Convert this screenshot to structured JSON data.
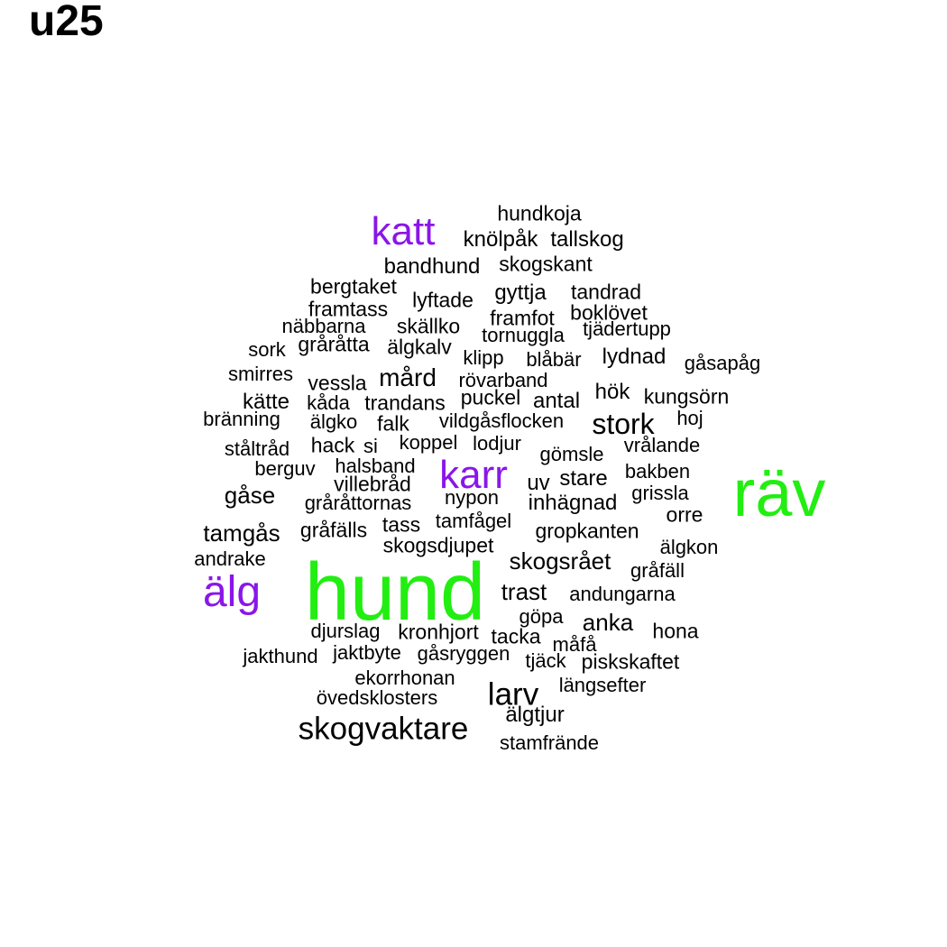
{
  "title": "u25",
  "colors": {
    "green": "#22ee11",
    "purple": "#8a16e8",
    "black": "#000000"
  },
  "words": [
    {
      "text": "hundkoja",
      "color": "black"
    },
    {
      "text": "katt",
      "color": "purple"
    },
    {
      "text": "knölpåk",
      "color": "black"
    },
    {
      "text": "tallskog",
      "color": "black"
    },
    {
      "text": "bandhund",
      "color": "black"
    },
    {
      "text": "skogskant",
      "color": "black"
    },
    {
      "text": "bergtaket",
      "color": "black"
    },
    {
      "text": "lyftade",
      "color": "black"
    },
    {
      "text": "gyttja",
      "color": "black"
    },
    {
      "text": "tandrad",
      "color": "black"
    },
    {
      "text": "framtass",
      "color": "black"
    },
    {
      "text": "framfot",
      "color": "black"
    },
    {
      "text": "boklövet",
      "color": "black"
    },
    {
      "text": "näbbarna",
      "color": "black"
    },
    {
      "text": "skällko",
      "color": "black"
    },
    {
      "text": "tjädertupp",
      "color": "black"
    },
    {
      "text": "tornuggla",
      "color": "black"
    },
    {
      "text": "sork",
      "color": "black"
    },
    {
      "text": "gråråtta",
      "color": "black"
    },
    {
      "text": "älgkalv",
      "color": "black"
    },
    {
      "text": "klipp",
      "color": "black"
    },
    {
      "text": "blåbär",
      "color": "black"
    },
    {
      "text": "lydnad",
      "color": "black"
    },
    {
      "text": "gåsapåg",
      "color": "black"
    },
    {
      "text": "smirres",
      "color": "black"
    },
    {
      "text": "vessla",
      "color": "black"
    },
    {
      "text": "mård",
      "color": "black"
    },
    {
      "text": "rövarband",
      "color": "black"
    },
    {
      "text": "kätte",
      "color": "black"
    },
    {
      "text": "kåda",
      "color": "black"
    },
    {
      "text": "trandans",
      "color": "black"
    },
    {
      "text": "puckel",
      "color": "black"
    },
    {
      "text": "antal",
      "color": "black"
    },
    {
      "text": "hök",
      "color": "black"
    },
    {
      "text": "kungsörn",
      "color": "black"
    },
    {
      "text": "bränning",
      "color": "black"
    },
    {
      "text": "älgko",
      "color": "black"
    },
    {
      "text": "falk",
      "color": "black"
    },
    {
      "text": "vildgåsflocken",
      "color": "black"
    },
    {
      "text": "stork",
      "color": "black"
    },
    {
      "text": "hoj",
      "color": "black"
    },
    {
      "text": "ståltråd",
      "color": "black"
    },
    {
      "text": "hack",
      "color": "black"
    },
    {
      "text": "si",
      "color": "black"
    },
    {
      "text": "koppel",
      "color": "black"
    },
    {
      "text": "lodjur",
      "color": "black"
    },
    {
      "text": "gömsle",
      "color": "black"
    },
    {
      "text": "vrålande",
      "color": "black"
    },
    {
      "text": "berguv",
      "color": "black"
    },
    {
      "text": "halsband",
      "color": "black"
    },
    {
      "text": "karr",
      "color": "purple"
    },
    {
      "text": "bakben",
      "color": "black"
    },
    {
      "text": "villebråd",
      "color": "black"
    },
    {
      "text": "uv",
      "color": "black"
    },
    {
      "text": "stare",
      "color": "black"
    },
    {
      "text": "räv",
      "color": "green"
    },
    {
      "text": "gåse",
      "color": "black"
    },
    {
      "text": "gråråttornas",
      "color": "black"
    },
    {
      "text": "nypon",
      "color": "black"
    },
    {
      "text": "inhägnad",
      "color": "black"
    },
    {
      "text": "grissla",
      "color": "black"
    },
    {
      "text": "orre",
      "color": "black"
    },
    {
      "text": "tamgås",
      "color": "black"
    },
    {
      "text": "gråfälls",
      "color": "black"
    },
    {
      "text": "tass",
      "color": "black"
    },
    {
      "text": "tamfågel",
      "color": "black"
    },
    {
      "text": "gropkanten",
      "color": "black"
    },
    {
      "text": "skogsdjupet",
      "color": "black"
    },
    {
      "text": "älgkon",
      "color": "black"
    },
    {
      "text": "andrake",
      "color": "black"
    },
    {
      "text": "skogsrået",
      "color": "black"
    },
    {
      "text": "gråfäll",
      "color": "black"
    },
    {
      "text": "älg",
      "color": "purple"
    },
    {
      "text": "hund",
      "color": "green"
    },
    {
      "text": "trast",
      "color": "black"
    },
    {
      "text": "andungarna",
      "color": "black"
    },
    {
      "text": "göpa",
      "color": "black"
    },
    {
      "text": "anka",
      "color": "black"
    },
    {
      "text": "djurslag",
      "color": "black"
    },
    {
      "text": "kronhjort",
      "color": "black"
    },
    {
      "text": "tacka",
      "color": "black"
    },
    {
      "text": "hona",
      "color": "black"
    },
    {
      "text": "måfå",
      "color": "black"
    },
    {
      "text": "jakthund",
      "color": "black"
    },
    {
      "text": "jaktbyte",
      "color": "black"
    },
    {
      "text": "gåsryggen",
      "color": "black"
    },
    {
      "text": "tjäck",
      "color": "black"
    },
    {
      "text": "piskskaftet",
      "color": "black"
    },
    {
      "text": "ekorrhonan",
      "color": "black"
    },
    {
      "text": "längsefter",
      "color": "black"
    },
    {
      "text": "larv",
      "color": "black"
    },
    {
      "text": "övedsklosters",
      "color": "black"
    },
    {
      "text": "älgtjur",
      "color": "black"
    },
    {
      "text": "skogvaktare",
      "color": "black"
    },
    {
      "text": "stamfrände",
      "color": "black"
    }
  ]
}
